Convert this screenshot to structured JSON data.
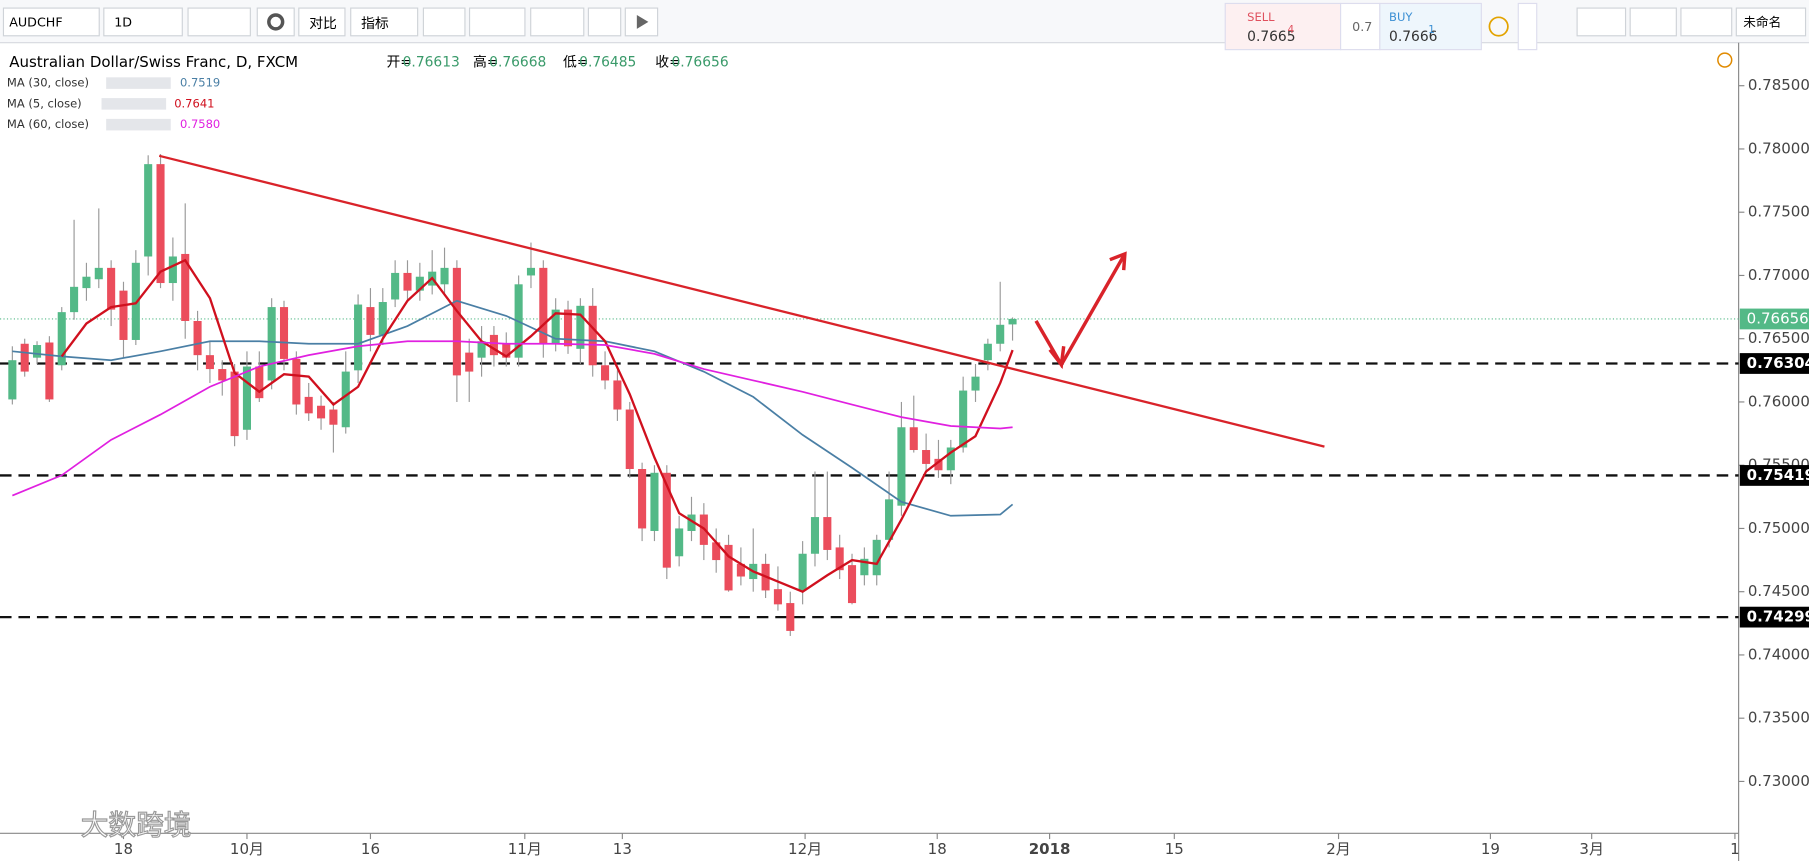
{
  "toolbar": {
    "symbol": "AUDCHF",
    "interval": "1D",
    "compare": "对比",
    "indicators": "指标",
    "sell_label": "SELL",
    "sell_price": "0.7665",
    "sell_pip": "4",
    "spread": "0.7",
    "buy_label": "BUY",
    "buy_price": "0.7666",
    "buy_pip": "1",
    "layout_name": "未命名"
  },
  "watermark": "大数跨境",
  "chart_data": {
    "type": "candlestick",
    "title": "Australian Dollar/Swiss Franc, D, FXCM",
    "ohlc_labels": [
      "开=",
      "高=",
      "低=",
      "收="
    ],
    "up_color": "#53b987",
    "down_color": "#eb4d5c",
    "ohlc": [
      [
        0.7602,
        0.7644,
        0.7598,
        0.7633
      ],
      [
        0.7646,
        0.765,
        0.762,
        0.7624
      ],
      [
        0.7635,
        0.7648,
        0.763,
        0.7645
      ],
      [
        0.7647,
        0.7652,
        0.76,
        0.7602
      ],
      [
        0.7629,
        0.7675,
        0.7625,
        0.7671
      ],
      [
        0.7671,
        0.7744,
        0.7665,
        0.7691
      ],
      [
        0.769,
        0.771,
        0.768,
        0.7699
      ],
      [
        0.7697,
        0.7753,
        0.769,
        0.7706
      ],
      [
        0.7706,
        0.7712,
        0.766,
        0.7673
      ],
      [
        0.7688,
        0.7695,
        0.7635,
        0.7649
      ],
      [
        0.7649,
        0.772,
        0.7645,
        0.771
      ],
      [
        0.7715,
        0.7795,
        0.77,
        0.7788
      ],
      [
        0.7788,
        0.7796,
        0.769,
        0.7694
      ],
      [
        0.7694,
        0.773,
        0.768,
        0.7715
      ],
      [
        0.7717,
        0.7757,
        0.765,
        0.7664
      ],
      [
        0.7664,
        0.7672,
        0.7625,
        0.7637
      ],
      [
        0.7637,
        0.7648,
        0.7615,
        0.7626
      ],
      [
        0.7626,
        0.7633,
        0.7605,
        0.7617
      ],
      [
        0.7624,
        0.763,
        0.7565,
        0.7573
      ],
      [
        0.7578,
        0.764,
        0.757,
        0.7628
      ],
      [
        0.7628,
        0.764,
        0.76,
        0.7603
      ],
      [
        0.7617,
        0.7682,
        0.761,
        0.7675
      ],
      [
        0.7675,
        0.768,
        0.7625,
        0.7634
      ],
      [
        0.7634,
        0.764,
        0.759,
        0.7598
      ],
      [
        0.7604,
        0.7615,
        0.7585,
        0.7591
      ],
      [
        0.7597,
        0.7605,
        0.7578,
        0.7587
      ],
      [
        0.7594,
        0.76,
        0.756,
        0.7582
      ],
      [
        0.758,
        0.764,
        0.7575,
        0.7624
      ],
      [
        0.7625,
        0.7685,
        0.7615,
        0.7677
      ],
      [
        0.7675,
        0.769,
        0.764,
        0.7653
      ],
      [
        0.7653,
        0.769,
        0.7645,
        0.7679
      ],
      [
        0.7681,
        0.7712,
        0.7675,
        0.7702
      ],
      [
        0.7702,
        0.7712,
        0.768,
        0.7688
      ],
      [
        0.7688,
        0.771,
        0.768,
        0.7699
      ],
      [
        0.7692,
        0.772,
        0.7685,
        0.7703
      ],
      [
        0.7693,
        0.7722,
        0.7685,
        0.7706
      ],
      [
        0.7706,
        0.7712,
        0.76,
        0.7621
      ],
      [
        0.7639,
        0.765,
        0.76,
        0.7624
      ],
      [
        0.7635,
        0.766,
        0.762,
        0.7648
      ],
      [
        0.7653,
        0.766,
        0.7628,
        0.7637
      ],
      [
        0.7646,
        0.7655,
        0.7628,
        0.7635
      ],
      [
        0.7635,
        0.77,
        0.7628,
        0.7693
      ],
      [
        0.77,
        0.7726,
        0.769,
        0.7706
      ],
      [
        0.7706,
        0.7712,
        0.7635,
        0.7646
      ],
      [
        0.7646,
        0.7682,
        0.764,
        0.7673
      ],
      [
        0.7673,
        0.768,
        0.7638,
        0.7644
      ],
      [
        0.7642,
        0.7682,
        0.763,
        0.7676
      ],
      [
        0.7676,
        0.769,
        0.762,
        0.7629
      ],
      [
        0.7629,
        0.764,
        0.761,
        0.7617
      ],
      [
        0.7617,
        0.7625,
        0.7585,
        0.7594
      ],
      [
        0.7594,
        0.76,
        0.754,
        0.7547
      ],
      [
        0.7547,
        0.7552,
        0.749,
        0.75
      ],
      [
        0.7498,
        0.755,
        0.749,
        0.7544
      ],
      [
        0.7544,
        0.755,
        0.746,
        0.7469
      ],
      [
        0.7478,
        0.751,
        0.747,
        0.75
      ],
      [
        0.7498,
        0.7525,
        0.749,
        0.7511
      ],
      [
        0.7511,
        0.752,
        0.7475,
        0.7487
      ],
      [
        0.7489,
        0.75,
        0.7465,
        0.7475
      ],
      [
        0.7487,
        0.7495,
        0.745,
        0.7451
      ],
      [
        0.7472,
        0.7485,
        0.7455,
        0.7462
      ],
      [
        0.746,
        0.75,
        0.745,
        0.7472
      ],
      [
        0.7472,
        0.748,
        0.7445,
        0.7451
      ],
      [
        0.7452,
        0.747,
        0.7435,
        0.744
      ],
      [
        0.7441,
        0.745,
        0.7415,
        0.7419
      ],
      [
        0.7451,
        0.749,
        0.744,
        0.748
      ],
      [
        0.748,
        0.7545,
        0.747,
        0.7509
      ],
      [
        0.7509,
        0.7545,
        0.7475,
        0.7483
      ],
      [
        0.7485,
        0.7495,
        0.746,
        0.7467
      ],
      [
        0.7471,
        0.748,
        0.744,
        0.7441
      ],
      [
        0.7463,
        0.7485,
        0.7455,
        0.7476
      ],
      [
        0.7463,
        0.7495,
        0.7455,
        0.7491
      ],
      [
        0.7491,
        0.7545,
        0.7485,
        0.7523
      ],
      [
        0.7518,
        0.76,
        0.751,
        0.758
      ],
      [
        0.758,
        0.7605,
        0.756,
        0.7562
      ],
      [
        0.7562,
        0.7575,
        0.7545,
        0.7551
      ],
      [
        0.7555,
        0.757,
        0.754,
        0.7546
      ],
      [
        0.7546,
        0.757,
        0.7535,
        0.7564
      ],
      [
        0.7564,
        0.762,
        0.756,
        0.7609
      ],
      [
        0.7609,
        0.763,
        0.76,
        0.762
      ],
      [
        0.7633,
        0.765,
        0.7625,
        0.7646
      ],
      [
        0.7646,
        0.7695,
        0.764,
        0.7661
      ],
      [
        0.76613,
        0.76668,
        0.76485,
        0.76656
      ]
    ],
    "series": [
      {
        "name": "MA (30, close)",
        "color": "#4a7fa5",
        "value_label": "0.7519",
        "x": [
          0,
          4,
          8,
          12,
          16,
          20,
          24,
          28,
          32,
          36,
          40,
          44,
          48,
          52,
          56,
          60,
          64,
          68,
          72,
          76,
          80,
          81
        ],
        "values": [
          0.764,
          0.7636,
          0.7633,
          0.764,
          0.7648,
          0.7648,
          0.7646,
          0.7646,
          0.766,
          0.768,
          0.7668,
          0.765,
          0.7648,
          0.764,
          0.7624,
          0.7604,
          0.7574,
          0.7548,
          0.7521,
          0.751,
          0.7511,
          0.7519
        ]
      },
      {
        "name": "MA (5, close)",
        "color": "#d0101e",
        "value_label": "0.7641",
        "x": [
          4,
          6,
          8,
          10,
          12,
          14,
          16,
          18,
          20,
          22,
          24,
          26,
          28,
          30,
          32,
          34,
          36,
          38,
          40,
          42,
          44,
          46,
          48,
          50,
          52,
          54,
          56,
          58,
          60,
          62,
          64,
          66,
          68,
          70,
          72,
          74,
          76,
          78,
          80,
          81
        ],
        "values": [
          0.7636,
          0.7662,
          0.7675,
          0.7678,
          0.7703,
          0.7712,
          0.7682,
          0.7623,
          0.7608,
          0.7622,
          0.762,
          0.7598,
          0.7612,
          0.765,
          0.768,
          0.7698,
          0.7672,
          0.7648,
          0.7636,
          0.7652,
          0.767,
          0.7669,
          0.7648,
          0.7606,
          0.7556,
          0.7512,
          0.75,
          0.7478,
          0.7466,
          0.7458,
          0.745,
          0.7463,
          0.7475,
          0.7472,
          0.7507,
          0.7545,
          0.756,
          0.7573,
          0.7615,
          0.7641
        ]
      },
      {
        "name": "MA (60, close)",
        "color": "#e020e0",
        "value_label": "0.7580",
        "x": [
          0,
          4,
          8,
          12,
          16,
          20,
          24,
          28,
          32,
          36,
          40,
          44,
          48,
          52,
          56,
          60,
          64,
          68,
          72,
          76,
          80,
          81
        ],
        "values": [
          0.7526,
          0.7542,
          0.757,
          0.759,
          0.7612,
          0.7628,
          0.7637,
          0.7644,
          0.7648,
          0.7648,
          0.7646,
          0.7646,
          0.7645,
          0.7638,
          0.7626,
          0.7617,
          0.7608,
          0.7598,
          0.7588,
          0.7581,
          0.7579,
          0.758
        ]
      }
    ],
    "levels": [
      0.76304,
      0.75419,
      0.74299
    ],
    "last_price": 0.76656,
    "last_color": "#53b987",
    "xlim": [
      -1,
      139.8
    ],
    "xticks": [
      {
        "value": 9,
        "label": "18"
      },
      {
        "value": 19,
        "label": "10月"
      },
      {
        "value": 29,
        "label": "16"
      },
      {
        "value": 41.5,
        "label": "11月"
      },
      {
        "value": 49.4,
        "label": "13"
      },
      {
        "value": 64.2,
        "label": "12月"
      },
      {
        "value": 74.9,
        "label": "18"
      },
      {
        "value": 84,
        "label": "2018"
      },
      {
        "value": 94.1,
        "label": "15"
      },
      {
        "value": 107.4,
        "label": "2月"
      },
      {
        "value": 119.7,
        "label": "19"
      },
      {
        "value": 127.9,
        "label": "3月"
      },
      {
        "value": 139.5,
        "label": "1"
      }
    ],
    "ylim": [
      0.7259,
      0.7884
    ],
    "yticks": [
      {
        "value": 0.785,
        "label": "0.78500"
      },
      {
        "value": 0.78,
        "label": "0.78000"
      },
      {
        "value": 0.775,
        "label": "0.77500"
      },
      {
        "value": 0.77,
        "label": "0.77000"
      },
      {
        "value": 0.765,
        "label": "0.76500"
      },
      {
        "value": 0.76,
        "label": "0.76000"
      },
      {
        "value": 0.755,
        "label": "0.75500"
      },
      {
        "value": 0.75,
        "label": "0.75000"
      },
      {
        "value": 0.745,
        "label": "0.74500"
      },
      {
        "value": 0.74,
        "label": "0.74000"
      },
      {
        "value": 0.735,
        "label": "0.73500"
      },
      {
        "value": 0.73,
        "label": "0.73000"
      }
    ]
  }
}
